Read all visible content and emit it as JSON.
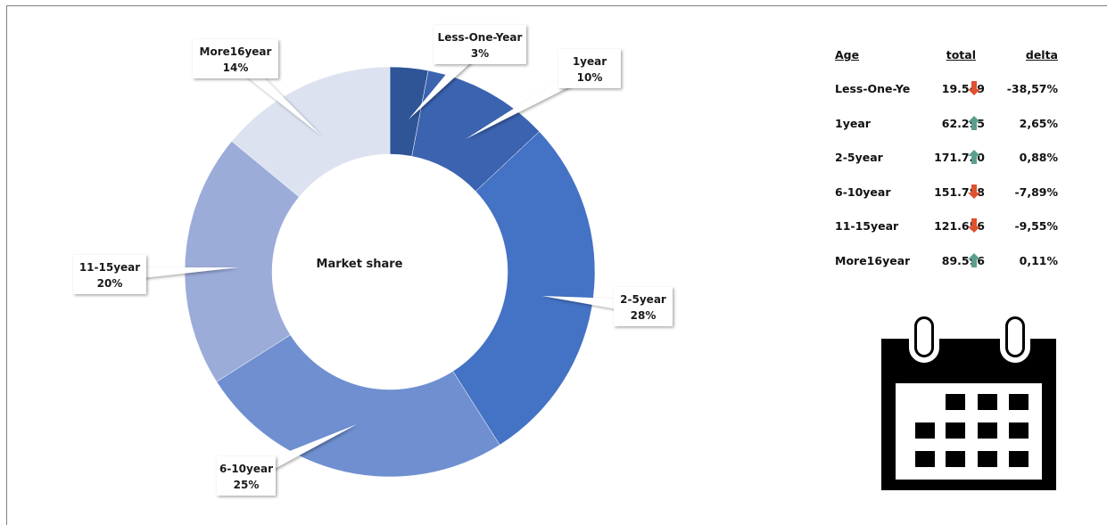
{
  "chart_data": {
    "type": "pie",
    "variant": "donut",
    "center_label": "Market share",
    "slices": [
      {
        "label": "Less-One-Year",
        "value": 3,
        "display": "3%",
        "color": "#2f5597"
      },
      {
        "label": "1year",
        "value": 10,
        "display": "10%",
        "color": "#3b63b0"
      },
      {
        "label": "2-5year",
        "value": 28,
        "display": "28%",
        "color": "#4472c4"
      },
      {
        "label": "6-10year",
        "value": 25,
        "display": "25%",
        "color": "#6f8fd0"
      },
      {
        "label": "11-15year",
        "value": 20,
        "display": "20%",
        "color": "#9bacd9"
      },
      {
        "label": "More16year",
        "value": 14,
        "display": "14%",
        "color": "#dce2f0"
      }
    ]
  },
  "table": {
    "headers": {
      "age": "Age",
      "total": "total",
      "delta": "delta"
    },
    "rows": [
      {
        "age": "Less-One-Year",
        "total": "19.549",
        "trend": "down",
        "delta": "-38,57%"
      },
      {
        "age": "1year",
        "total": "62.295",
        "trend": "up",
        "delta": "2,65%"
      },
      {
        "age": "2-5year",
        "total": "171.720",
        "trend": "up",
        "delta": "0,88%"
      },
      {
        "age": "6-10year",
        "total": "151.788",
        "trend": "down",
        "delta": "-7,89%"
      },
      {
        "age": "11-15year",
        "total": "121.656",
        "trend": "down",
        "delta": "-9,55%"
      },
      {
        "age": "More16year",
        "total": "89.596",
        "trend": "up",
        "delta": "0,11%"
      }
    ],
    "colors": {
      "up": "#5b9e8f",
      "down": "#e0512f"
    }
  },
  "icon": "calendar-icon"
}
